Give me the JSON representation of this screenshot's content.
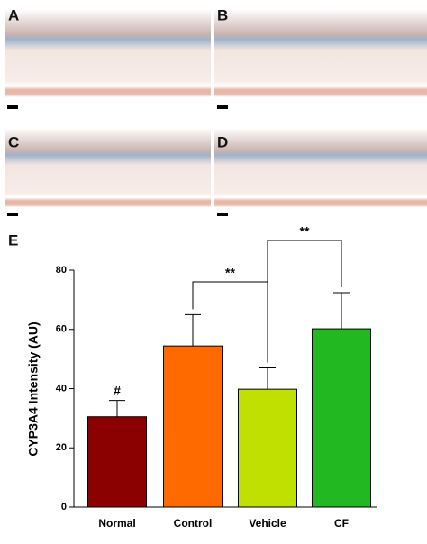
{
  "panels": [
    {
      "label": "A"
    },
    {
      "label": "B"
    },
    {
      "label": "C"
    },
    {
      "label": "D"
    }
  ],
  "chart_label": "E",
  "chart_data": {
    "type": "bar",
    "y_label": "CYP3A4 Intensity (AU)",
    "categories": [
      "Normal",
      "Control",
      "Vehicle",
      "CF"
    ],
    "values": [
      30.5,
      54.4,
      39.8,
      60.2
    ],
    "errors": [
      5.5,
      10.6,
      7.2,
      12.2
    ],
    "colors": [
      "#8b0000",
      "#ff6a00",
      "#bfe000",
      "#22b822"
    ],
    "ylim": [
      0,
      80
    ],
    "yticks": [
      0,
      20,
      40,
      60,
      80
    ],
    "annotations": [
      "#",
      "**",
      "**"
    ]
  }
}
